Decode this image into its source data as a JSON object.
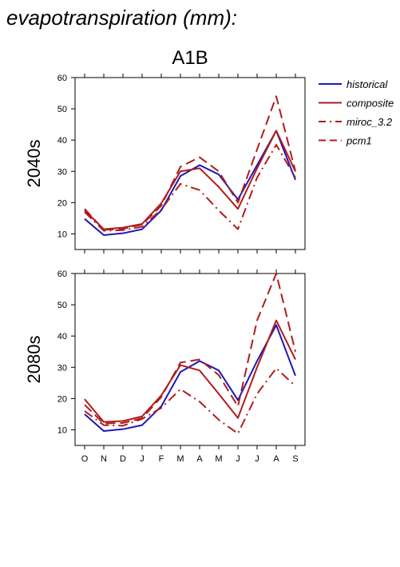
{
  "title": "evapotranspiration (mm):",
  "scenario": "A1B",
  "colors": {
    "historical": "#1a1ab8",
    "projection": "#b01c1c"
  },
  "legend": [
    {
      "name": "historical",
      "style": "solid",
      "color": "#1a1ab8"
    },
    {
      "name": "composite",
      "style": "solid",
      "color": "#b01c1c"
    },
    {
      "name": "miroc_3.2",
      "style": "dashdot",
      "color": "#b01c1c"
    },
    {
      "name": "pcm1",
      "style": "dash",
      "color": "#b01c1c"
    }
  ],
  "chart_data": [
    {
      "type": "line",
      "row_label": "2040s",
      "categories": [
        "O",
        "N",
        "D",
        "J",
        "F",
        "M",
        "A",
        "M",
        "J",
        "J",
        "A",
        "S"
      ],
      "ylim": [
        5,
        60
      ],
      "yticks": [
        10,
        20,
        30,
        40,
        50,
        60
      ],
      "series": [
        {
          "name": "historical",
          "values": [
            14.8,
            9.6,
            10.2,
            11.5,
            17.5,
            28.5,
            32,
            29,
            21,
            32,
            43,
            27.3
          ]
        },
        {
          "name": "composite",
          "values": [
            17.5,
            11.5,
            12,
            13.2,
            19.8,
            30,
            31,
            25,
            18,
            31,
            43,
            30
          ]
        },
        {
          "name": "miroc_3.2",
          "values": [
            17,
            11,
            11.2,
            12.3,
            17.8,
            26,
            24,
            17.5,
            11.5,
            28,
            38.5,
            28
          ]
        },
        {
          "name": "pcm1",
          "values": [
            18,
            11.3,
            11.6,
            13,
            19,
            31.5,
            34.5,
            30,
            20,
            37,
            54,
            30
          ]
        }
      ]
    },
    {
      "type": "line",
      "row_label": "2080s",
      "categories": [
        "O",
        "N",
        "D",
        "J",
        "F",
        "M",
        "A",
        "M",
        "J",
        "J",
        "A",
        "S"
      ],
      "ylim": [
        5,
        60
      ],
      "yticks": [
        10,
        20,
        30,
        40,
        50,
        60
      ],
      "series": [
        {
          "name": "historical",
          "values": [
            15,
            9.6,
            10.2,
            11.5,
            17.5,
            28.5,
            32,
            29,
            19.5,
            32,
            43.5,
            27.3
          ]
        },
        {
          "name": "composite",
          "values": [
            19.8,
            12.5,
            12.8,
            14.3,
            21,
            30.7,
            29,
            21.5,
            13.8,
            30,
            45,
            32.5
          ]
        },
        {
          "name": "miroc_3.2",
          "values": [
            16,
            11.5,
            11.3,
            13.5,
            17,
            23,
            19,
            13.2,
            8.8,
            21.5,
            29.7,
            24
          ]
        },
        {
          "name": "pcm1",
          "values": [
            18,
            12,
            12.2,
            13.7,
            20.5,
            31.5,
            32.5,
            27.5,
            17.5,
            45,
            60,
            35
          ]
        }
      ]
    }
  ]
}
